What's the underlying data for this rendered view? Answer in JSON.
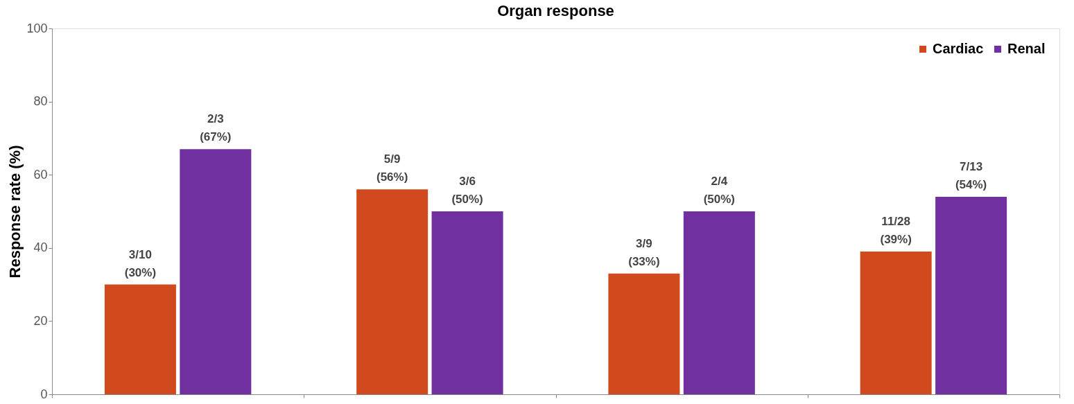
{
  "chart_data": {
    "type": "bar",
    "title": "Organ response",
    "ylabel": "Response rate (%)",
    "categories": [
      null,
      null,
      null,
      null
    ],
    "series": [
      {
        "name": "Cardiac",
        "color": "#d04a1e",
        "values": [
          30,
          56,
          33,
          39
        ],
        "value_labels": [
          "3/10 (30%)",
          "5/9 (56%)",
          "3/9 (33%)",
          "11/28 (39%)"
        ]
      },
      {
        "name": "Renal",
        "color": "#7030a0",
        "values": [
          67,
          50,
          50,
          54
        ],
        "value_labels": [
          "2/3 (67%)",
          "3/6 (50%)",
          "2/4 (50%)",
          "7/13 (54%)"
        ]
      }
    ],
    "ylim": [
      0,
      100
    ],
    "yticks": [
      0,
      20,
      40,
      60,
      80,
      100
    ],
    "grid": false,
    "legend": "top right",
    "tick_labels": "y"
  }
}
